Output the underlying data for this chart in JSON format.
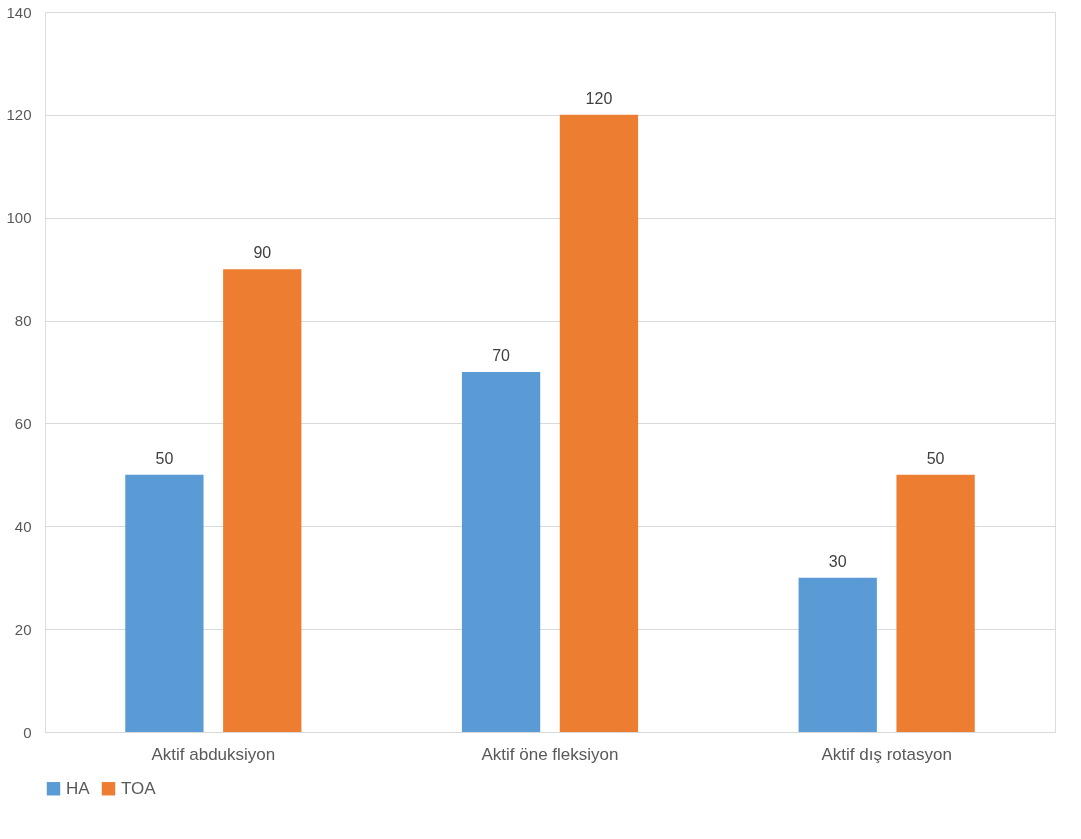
{
  "chart_data": {
    "type": "bar",
    "categories": [
      "Aktif abduksiyon",
      "Aktif öne fleksiyon",
      "Aktif dış rotasyon"
    ],
    "series": [
      {
        "name": "HA",
        "color": "#5b9bd5",
        "values": [
          50,
          70,
          30
        ]
      },
      {
        "name": "TOA",
        "color": "#ed7d31",
        "values": [
          90,
          120,
          50
        ]
      }
    ],
    "ylim": [
      0,
      140
    ],
    "yticks": [
      0,
      20,
      40,
      60,
      80,
      100,
      120,
      140
    ],
    "grid": "y",
    "legend": "bottom",
    "data_labels": true
  }
}
